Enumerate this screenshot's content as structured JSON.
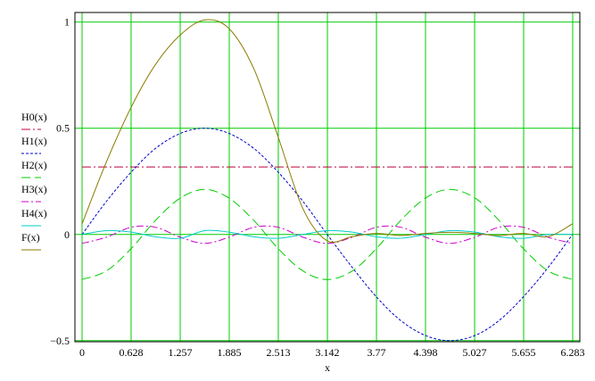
{
  "chart_data": {
    "type": "line",
    "xlabel": "x",
    "ylabel": "",
    "xlim": [
      0,
      6.283
    ],
    "ylim": [
      -0.5,
      1.0
    ],
    "grid": true,
    "grid_color": "#00cc00",
    "legend_position": "left-outside",
    "x_ticks": [
      "0",
      "0.628",
      "1.257",
      "1.885",
      "2.513",
      "3.142",
      "3.77",
      "4.398",
      "5.027",
      "5.655",
      "6.283"
    ],
    "x_tick_values": [
      0,
      0.628,
      1.257,
      1.885,
      2.513,
      3.142,
      3.77,
      4.398,
      5.027,
      5.655,
      6.283
    ],
    "y_ticks": [
      "1",
      "0.5",
      "0",
      "−0.5"
    ],
    "y_tick_values": [
      1,
      0.5,
      0,
      -0.5
    ],
    "x": [
      0,
      0.31,
      0.63,
      0.94,
      1.26,
      1.57,
      1.88,
      2.2,
      2.51,
      2.83,
      3.14,
      3.46,
      3.77,
      4.08,
      4.4,
      4.71,
      5.03,
      5.34,
      5.65,
      5.97,
      6.28
    ],
    "series": [
      {
        "name": "H0(x)",
        "color": "#c0003c",
        "dash": "10,3,2,3",
        "values": [
          0.318,
          0.318,
          0.318,
          0.318,
          0.318,
          0.318,
          0.318,
          0.318,
          0.318,
          0.318,
          0.318,
          0.318,
          0.318,
          0.318,
          0.318,
          0.318,
          0.318,
          0.318,
          0.318,
          0.318,
          0.318
        ]
      },
      {
        "name": "H1(x)",
        "color": "#0000cc",
        "dash": "3,2",
        "values": [
          0,
          0.155,
          0.294,
          0.405,
          0.476,
          0.5,
          0.476,
          0.405,
          0.294,
          0.155,
          0,
          -0.155,
          -0.294,
          -0.405,
          -0.476,
          -0.5,
          -0.476,
          -0.405,
          -0.294,
          -0.155,
          0
        ]
      },
      {
        "name": "H2(x)",
        "color": "#00cc00",
        "dash": "10,5",
        "values": [
          -0.212,
          -0.172,
          -0.066,
          0.066,
          0.172,
          0.212,
          0.172,
          0.066,
          -0.066,
          -0.172,
          -0.212,
          -0.172,
          -0.066,
          0.066,
          0.172,
          0.212,
          0.172,
          0.066,
          -0.066,
          -0.172,
          -0.212
        ]
      },
      {
        "name": "H3(x)",
        "color": "#cc00cc",
        "dash": "8,3,2,3",
        "values": [
          -0.042,
          -0.013,
          0.034,
          0.034,
          -0.013,
          -0.042,
          -0.013,
          0.034,
          0.034,
          -0.013,
          -0.042,
          -0.013,
          0.034,
          0.034,
          -0.013,
          -0.042,
          -0.013,
          0.034,
          0.034,
          -0.013,
          -0.042
        ]
      },
      {
        "name": "H4(x)",
        "color": "#00cccc",
        "dash": "",
        "values": [
          0,
          0.018,
          0.011,
          -0.011,
          -0.018,
          0.018,
          0.011,
          -0.011,
          -0.018,
          0,
          0.018,
          0.011,
          -0.011,
          -0.018,
          0,
          0.018,
          0.011,
          -0.011,
          -0.018,
          0,
          0
        ]
      },
      {
        "name": "F(x)",
        "color": "#8b7a00",
        "dash": "",
        "values": [
          0.05,
          0.34,
          0.6,
          0.8,
          0.94,
          1.01,
          0.97,
          0.78,
          0.46,
          0.12,
          -0.03,
          -0.01,
          0.005,
          -0.005,
          0.005,
          0.01,
          0.005,
          -0.005,
          0.005,
          -0.01,
          0.05
        ]
      }
    ]
  }
}
